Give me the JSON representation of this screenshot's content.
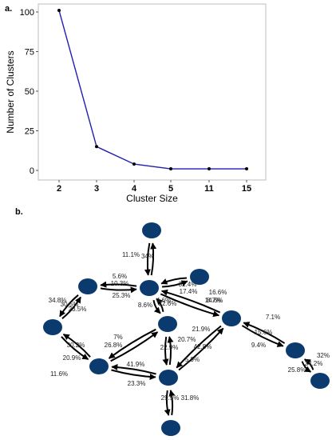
{
  "panel_a_label": "a.",
  "panel_b_label": "b.",
  "chart_data": [
    {
      "type": "line",
      "title": "",
      "xlabel": "Cluster Size",
      "ylabel": "Number of Clusters",
      "categories": [
        "2",
        "3",
        "4",
        "5",
        "11",
        "15"
      ],
      "values": [
        101,
        15,
        4,
        1,
        1,
        1
      ],
      "yticks": [
        0,
        25,
        50,
        75,
        100
      ],
      "ylim": [
        0,
        105
      ],
      "line_color": "#1f1fb4",
      "marker_color": "#000000",
      "grid": false
    },
    {
      "type": "network",
      "node_color": "#0b3a6e",
      "nodes": [
        "n1",
        "n2",
        "n3",
        "n4",
        "n5",
        "n6",
        "n7",
        "n8",
        "n9",
        "n10",
        "n11",
        "n12",
        "n13"
      ],
      "edges": [
        {
          "pair": [
            "n3",
            "n1"
          ],
          "labels": [
            "11.1%",
            "34%"
          ]
        },
        {
          "pair": [
            "n2",
            "n3"
          ],
          "labels": [
            "5.6%",
            "10.3%",
            "25.3%"
          ]
        },
        {
          "pair": [
            "n2",
            "n4"
          ],
          "labels": [
            "34.8%",
            "30.5%",
            "23.5%"
          ]
        },
        {
          "pair": [
            "n4",
            "n7"
          ],
          "labels": [
            "20.9%",
            "30.2%",
            "11.6%"
          ]
        },
        {
          "pair": [
            "n3",
            "n6"
          ],
          "labels": [
            "8.6%",
            "4.6%",
            "22.6%"
          ]
        },
        {
          "pair": [
            "n3",
            "n8"
          ],
          "labels": [
            "32.4%",
            "17.4%"
          ]
        },
        {
          "pair": [
            "n3",
            "n5"
          ],
          "labels": [
            "16.6%",
            "14.6%",
            "8.7%"
          ]
        },
        {
          "pair": [
            "n7",
            "n6"
          ],
          "labels": [
            "7%",
            "26.8%"
          ]
        },
        {
          "pair": [
            "n7",
            "n9"
          ],
          "labels": [
            "41.9%",
            "23.3%"
          ]
        },
        {
          "pair": [
            "n6",
            "n9"
          ],
          "labels": [
            "22.9%",
            "20.7%"
          ]
        },
        {
          "pair": [
            "n8",
            "n9"
          ],
          "labels": [
            "21.9%",
            "42.8%",
            "5.9%"
          ]
        },
        {
          "pair": [
            "n8",
            "n10"
          ],
          "labels": [
            "7.1%",
            "15.6%",
            "9.4%"
          ]
        },
        {
          "pair": [
            "n10",
            "n12"
          ],
          "labels": [
            "32%",
            "25.8%",
            "24.2%"
          ]
        },
        {
          "pair": [
            "n9",
            "n13"
          ],
          "labels": [
            "29.5%",
            "31.8%"
          ]
        }
      ]
    }
  ]
}
